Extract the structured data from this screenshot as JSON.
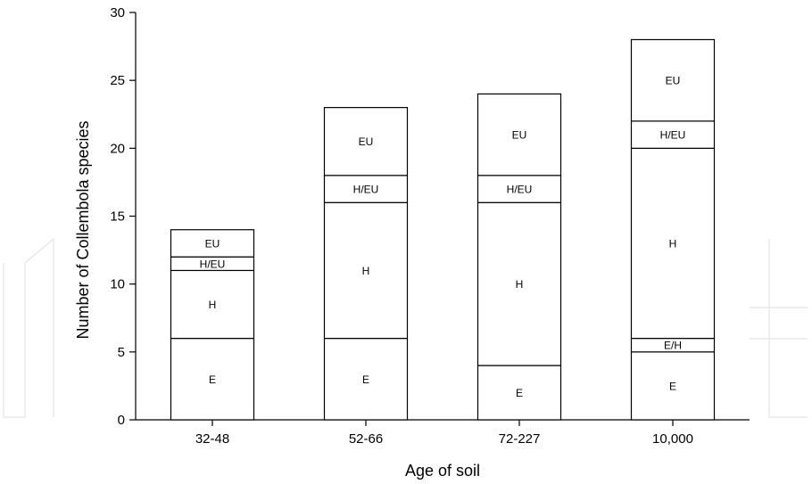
{
  "chart_data": {
    "type": "bar",
    "stacked": true,
    "title": "",
    "xlabel": "Age of soil",
    "ylabel": "Number of Collembola species",
    "ylim": [
      0,
      30
    ],
    "yticks": [
      0,
      5,
      10,
      15,
      20,
      25,
      30
    ],
    "grid": false,
    "categories": [
      "32-48",
      "52-66",
      "72-227",
      "10,000"
    ],
    "bars": [
      {
        "category": "32-48",
        "segments": [
          {
            "label": "E",
            "value": 6
          },
          {
            "label": "H",
            "value": 5
          },
          {
            "label": "H/EU",
            "value": 1
          },
          {
            "label": "EU",
            "value": 2
          }
        ]
      },
      {
        "category": "52-66",
        "segments": [
          {
            "label": "E",
            "value": 6
          },
          {
            "label": "H",
            "value": 10
          },
          {
            "label": "H/EU",
            "value": 2
          },
          {
            "label": "EU",
            "value": 5
          }
        ]
      },
      {
        "category": "72-227",
        "segments": [
          {
            "label": "E",
            "value": 4
          },
          {
            "label": "H",
            "value": 12
          },
          {
            "label": "H/EU",
            "value": 2
          },
          {
            "label": "EU",
            "value": 6
          }
        ]
      },
      {
        "category": "10,000",
        "segments": [
          {
            "label": "E",
            "value": 5
          },
          {
            "label": "E/H",
            "value": 1
          },
          {
            "label": "H",
            "value": 14
          },
          {
            "label": "H/EU",
            "value": 2
          },
          {
            "label": "EU",
            "value": 6
          }
        ]
      }
    ]
  }
}
